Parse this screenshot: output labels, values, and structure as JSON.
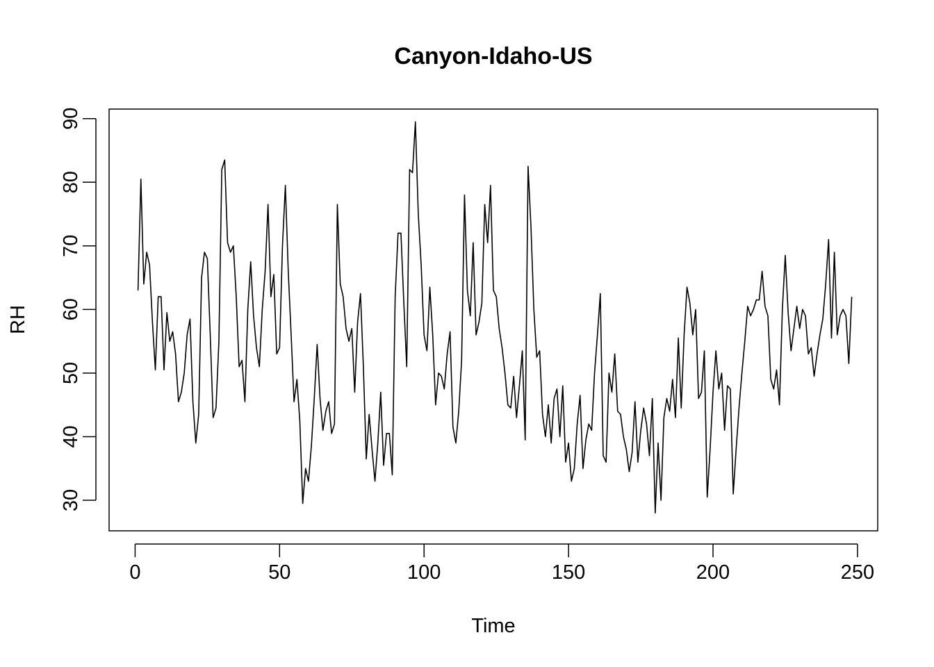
{
  "chart_data": {
    "type": "line",
    "title": "Canyon-Idaho-US",
    "xlabel": "Time",
    "ylabel": "RH",
    "xlim": [
      -9,
      257
    ],
    "ylim": [
      25.2,
      91.5
    ],
    "xticks": [
      0,
      50,
      100,
      150,
      200,
      250
    ],
    "yticks": [
      30,
      40,
      50,
      60,
      70,
      80,
      90
    ],
    "grid": false,
    "series": [
      {
        "x_start": 1,
        "values": [
          63,
          80.5,
          64,
          69,
          67,
          58,
          50.5,
          62,
          62,
          50.5,
          59.5,
          55,
          56.5,
          53,
          45.5,
          47,
          50,
          56,
          58.5,
          45.5,
          39,
          43.5,
          65,
          69,
          68,
          56,
          43,
          44.5,
          55,
          82,
          83.5,
          70.5,
          69,
          70,
          62,
          51,
          52,
          45.5,
          60,
          67.5,
          59,
          54,
          51,
          60,
          66,
          76.5,
          62,
          65.5,
          53,
          54,
          70,
          79.5,
          66,
          56,
          45.5,
          49,
          42.5,
          29.5,
          35,
          33,
          38.5,
          46,
          54.5,
          46,
          41,
          44,
          45.5,
          40.5,
          42,
          76.5,
          64,
          62,
          57,
          55,
          57,
          47,
          58,
          62.5,
          51,
          36.5,
          43.5,
          38,
          33,
          39,
          47,
          35.5,
          40.5,
          40.5,
          34,
          62,
          72,
          72,
          61,
          51,
          82,
          81.5,
          89.5,
          75,
          67,
          56,
          53.5,
          63.5,
          56,
          45,
          50,
          49.5,
          47.5,
          53,
          56.5,
          41.5,
          39,
          44,
          52,
          78,
          63,
          59,
          70.5,
          56,
          58,
          61,
          76.5,
          70.5,
          79.5,
          63,
          62,
          57,
          54,
          50,
          45,
          44.5,
          49.5,
          43,
          48,
          53.5,
          39.5,
          82.5,
          73,
          60,
          52.5,
          53.5,
          43.5,
          40,
          45,
          39,
          46,
          47.5,
          40,
          48,
          36,
          39,
          33,
          35,
          42,
          46.5,
          35,
          39.5,
          42,
          41,
          50,
          56,
          62.5,
          37,
          36,
          50,
          47,
          53,
          44,
          43.5,
          40,
          38,
          34.5,
          37.5,
          45.5,
          36,
          41,
          44.5,
          42,
          37,
          46,
          28,
          39,
          30,
          43,
          46,
          44,
          49,
          43,
          55.5,
          44.5,
          56,
          63.5,
          61,
          56,
          60,
          46,
          47,
          53.5,
          30.5,
          38,
          47,
          53.5,
          47.5,
          50,
          41,
          48,
          47.5,
          31,
          38,
          44.5,
          50,
          55,
          60.5,
          59,
          60,
          61.5,
          61.5,
          66,
          60.5,
          59,
          49,
          47.5,
          50.5,
          45,
          60,
          68.5,
          59.5,
          53.5,
          57,
          60.5,
          57,
          60,
          59,
          53,
          54,
          49.5,
          53,
          56,
          58.5,
          64,
          71,
          55.5,
          69,
          56,
          59,
          60,
          59,
          51.5,
          62
        ]
      }
    ]
  }
}
